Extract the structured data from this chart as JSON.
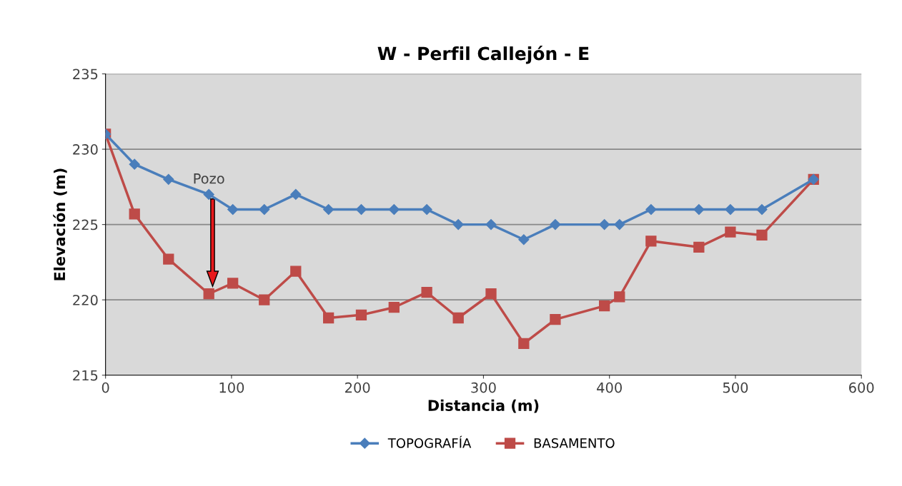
{
  "chart_data": {
    "type": "line",
    "title": "W - Perfil Callejón - E",
    "xlabel": "Distancia (m)",
    "ylabel": "Elevación (m)",
    "xlim": [
      0,
      600
    ],
    "xticks": [
      0,
      100,
      200,
      300,
      400,
      500,
      600
    ],
    "ylim": [
      215,
      235
    ],
    "yticks": [
      215,
      220,
      225,
      230,
      235
    ],
    "grid": "y",
    "legend": "bottom",
    "line_style": "solid",
    "annotations": [
      {
        "text": "Pozo",
        "x": 82,
        "y": 227
      }
    ],
    "series": [
      {
        "name": "TOPOGRAFÍA",
        "color": "#4a7ebb",
        "marker": "diamond",
        "x": [
          0,
          23,
          50,
          82,
          101,
          126,
          151,
          177,
          203,
          229,
          255,
          280,
          306,
          332,
          357,
          396,
          408,
          433,
          471,
          496,
          521,
          562
        ],
        "values": [
          231,
          229,
          228,
          227,
          226,
          226,
          227,
          226,
          226,
          226,
          226,
          225,
          225,
          224,
          225,
          225,
          225,
          226,
          226,
          226,
          226,
          228
        ]
      },
      {
        "name": "BASAMENTO",
        "color": "#be4b48",
        "marker": "square",
        "x": [
          0,
          23,
          50,
          82,
          101,
          126,
          151,
          177,
          203,
          229,
          255,
          280,
          306,
          332,
          357,
          396,
          408,
          433,
          471,
          496,
          521,
          562
        ],
        "values": [
          231,
          225.7,
          222.7,
          220.4,
          221.1,
          220.0,
          221.9,
          218.8,
          219.0,
          219.5,
          220.5,
          218.8,
          220.4,
          217.1,
          218.7,
          219.6,
          220.2,
          223.9,
          223.5,
          224.5,
          224.3,
          228
        ]
      }
    ]
  }
}
